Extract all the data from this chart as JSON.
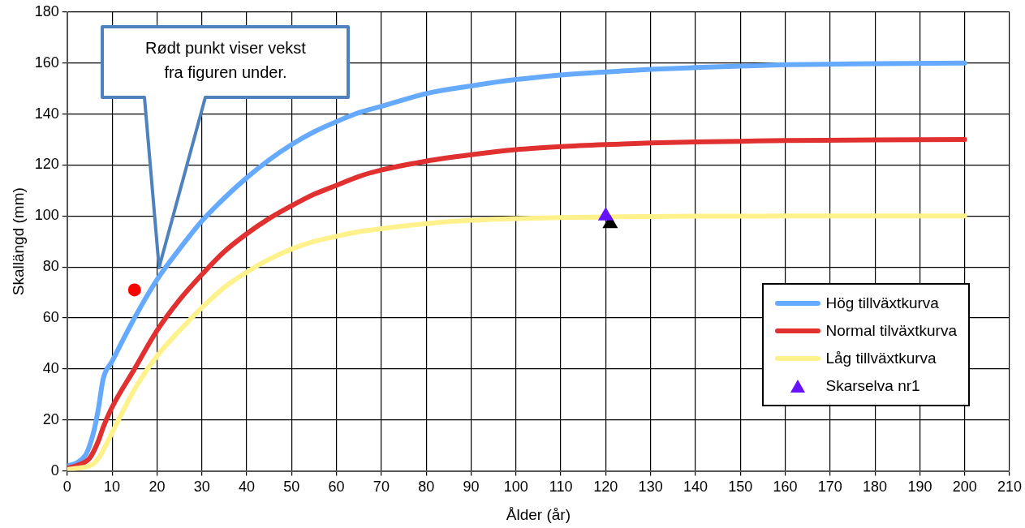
{
  "chart_data": {
    "type": "line",
    "xlabel": "Ålder (år)",
    "ylabel": "Skallängd (mm)",
    "xlim": [
      0,
      210
    ],
    "xticks": [
      0,
      10,
      20,
      30,
      40,
      50,
      60,
      70,
      80,
      90,
      100,
      110,
      120,
      130,
      140,
      150,
      160,
      170,
      180,
      190,
      200,
      210
    ],
    "ylim": [
      0,
      180
    ],
    "yticks": [
      0,
      20,
      40,
      60,
      80,
      100,
      120,
      140,
      160,
      180
    ],
    "grid": true,
    "legend": "bottom right",
    "marker": "none",
    "line_style": "solid",
    "annotations": [
      "Rødt punkt viser vekst fra figuren under."
    ],
    "series": [
      {
        "name": "Hög tillväxtkurva",
        "color": "#66aaff",
        "x": [
          0,
          2,
          4,
          5,
          6,
          7,
          8,
          10,
          15,
          20,
          25,
          30,
          35,
          40,
          45,
          50,
          55,
          60,
          65,
          70,
          80,
          90,
          100,
          110,
          120,
          130,
          140,
          150,
          160,
          180,
          200
        ],
        "values": [
          2,
          3,
          6,
          10,
          16,
          25,
          36,
          43,
          60,
          75,
          87,
          98,
          107,
          115,
          122,
          128,
          133,
          137,
          140.5,
          143,
          148,
          151,
          153.5,
          155.3,
          156.5,
          157.5,
          158.2,
          158.8,
          159.3,
          159.7,
          160
        ]
      },
      {
        "name": "Normal tilväxtkurva",
        "color": "#e03030",
        "x": [
          0,
          2,
          4,
          5,
          6,
          7,
          8,
          10,
          15,
          20,
          25,
          30,
          35,
          40,
          45,
          50,
          55,
          60,
          65,
          70,
          80,
          90,
          100,
          110,
          120,
          130,
          140,
          150,
          160,
          180,
          200
        ],
        "values": [
          1,
          2,
          3.5,
          5,
          8,
          12,
          17,
          25,
          40,
          55,
          67,
          77,
          86,
          93,
          99,
          104,
          108.5,
          112,
          115.5,
          118,
          121.5,
          124,
          126,
          127.2,
          128,
          128.6,
          129,
          129.3,
          129.6,
          129.8,
          130
        ]
      },
      {
        "name": "Låg tillväxtkurva",
        "color": "#fff28c",
        "x": [
          0,
          2,
          4,
          5,
          6,
          7,
          8,
          10,
          15,
          20,
          25,
          30,
          35,
          40,
          45,
          50,
          55,
          60,
          65,
          70,
          80,
          90,
          100,
          110,
          130,
          140,
          150,
          160,
          180,
          200
        ],
        "values": [
          0.5,
          1,
          1.5,
          2,
          3,
          5,
          8,
          15,
          32,
          45,
          55,
          64,
          72,
          78,
          83,
          87,
          90,
          92,
          93.8,
          95,
          97,
          98.3,
          99,
          99.4,
          99.8,
          99.9,
          99.9,
          100,
          100,
          100
        ]
      },
      {
        "type": "scatter",
        "color": "#ff0000",
        "marker": "circle",
        "x": [
          15
        ],
        "values": [
          71
        ]
      },
      {
        "type": "scatter",
        "color": "#000000",
        "marker": "triangle",
        "x": [
          121
        ],
        "values": [
          97
        ]
      },
      {
        "name": "Skarselva nr1",
        "type": "scatter",
        "color": "#6611ff",
        "marker": "triangle",
        "x": [
          120
        ],
        "values": [
          100
        ]
      }
    ]
  }
}
